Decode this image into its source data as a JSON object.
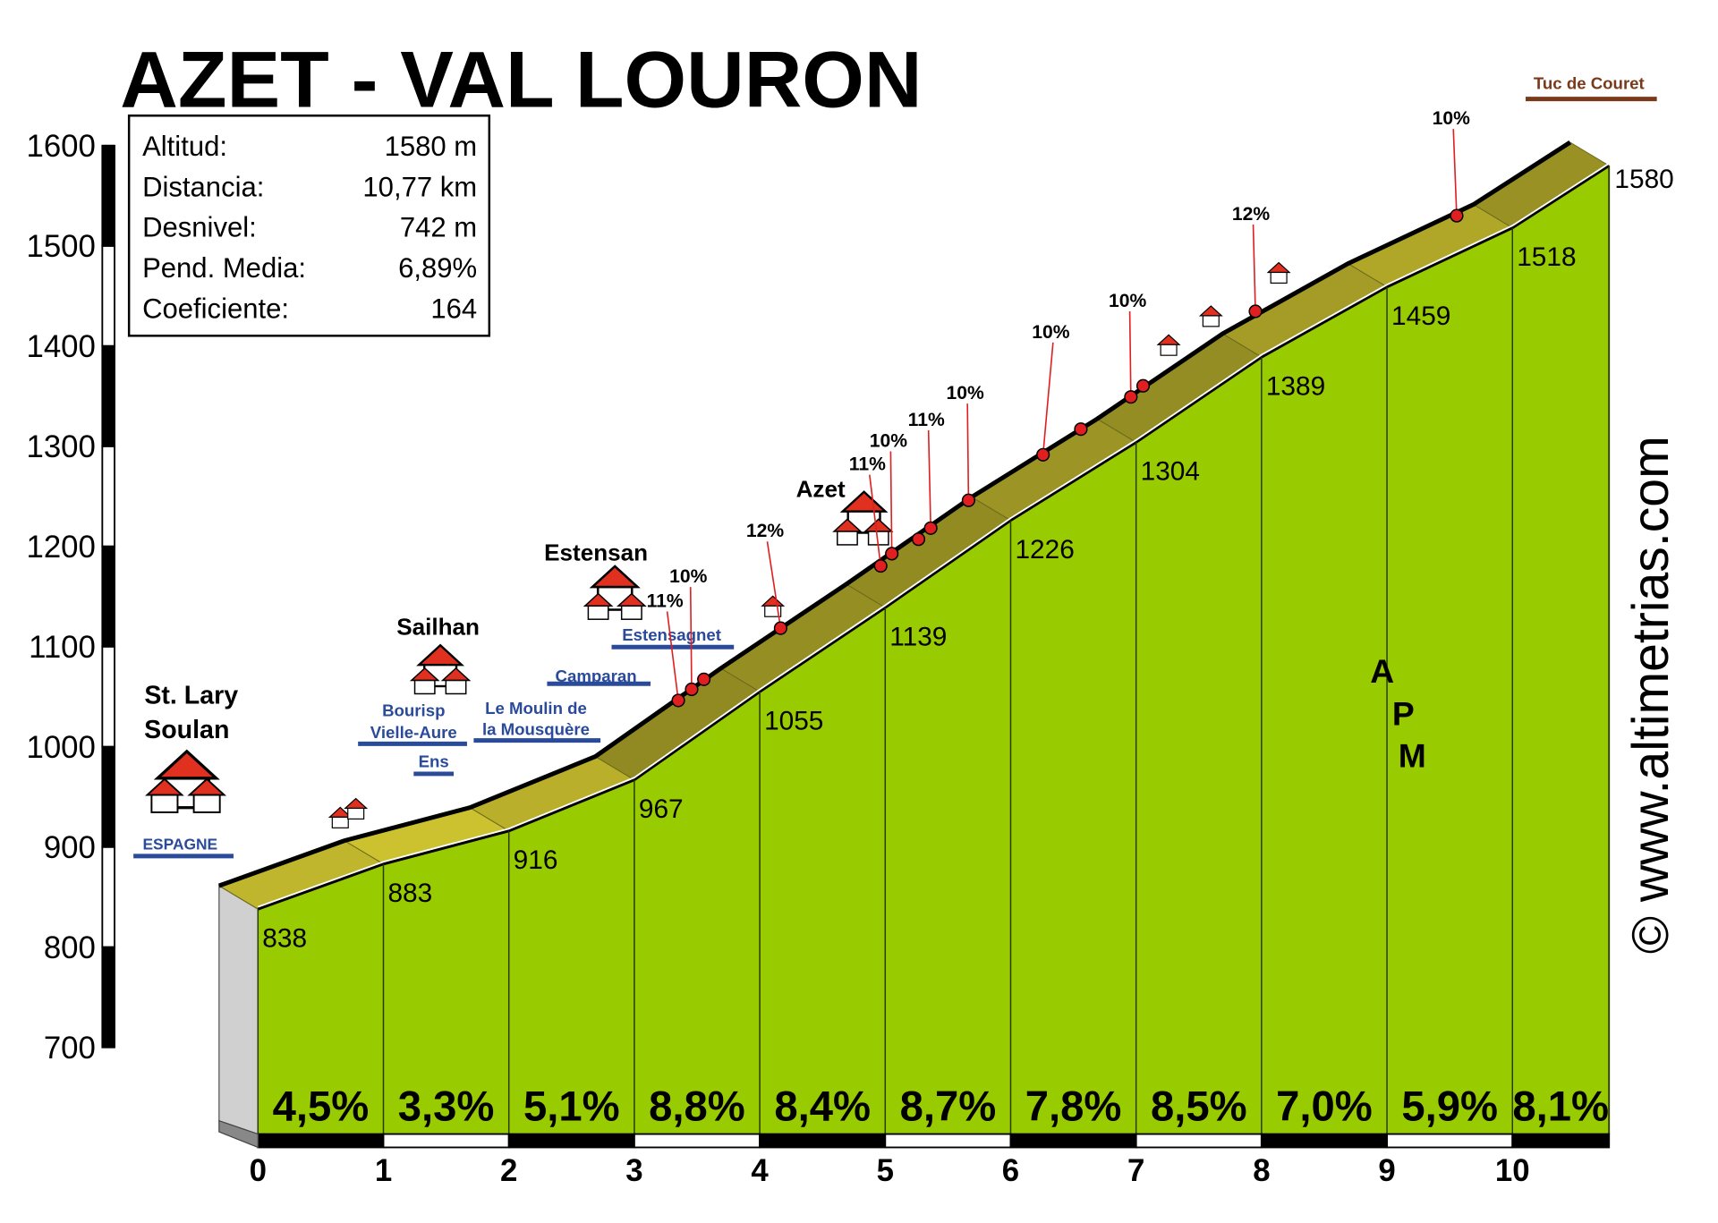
{
  "chart_data": {
    "type": "area",
    "title": "AZET - VAL LOURON",
    "x": [
      0,
      1,
      2,
      3,
      4,
      5,
      6,
      7,
      8,
      9,
      10,
      10.77
    ],
    "values": [
      838,
      883,
      916,
      967,
      1055,
      1139,
      1226,
      1304,
      1389,
      1459,
      1518,
      1580
    ],
    "color": "#99cc00",
    "xlim": [
      0,
      10.77
    ],
    "xticks": [
      0,
      1,
      2,
      3,
      4,
      5,
      6,
      7,
      8,
      9,
      10
    ],
    "ylim": [
      700,
      1600
    ],
    "yticks": [
      700,
      800,
      900,
      1000,
      1100,
      1200,
      1300,
      1400,
      1500,
      1600
    ],
    "grades": {
      "values": [
        4.5,
        3.3,
        5.1,
        8.8,
        8.4,
        8.7,
        7.8,
        8.5,
        7.0,
        5.9,
        8.1
      ],
      "value_labels": [
        "4,5%",
        "3,3%",
        "5,1%",
        "8,8%",
        "8,4%",
        "8,7%",
        "7,8%",
        "8,5%",
        "7,0%",
        "5,9%",
        "8,1%"
      ]
    },
    "stats": [
      {
        "label": "Altitud:",
        "value": "1580 m"
      },
      {
        "label": "Distancia:",
        "value": "10,77 km"
      },
      {
        "label": "Desnivel:",
        "value": "742 m"
      },
      {
        "label": "Pend. Media:",
        "value": "6,89%"
      },
      {
        "label": "Coeficiente:",
        "value": "164"
      }
    ],
    "places": [
      "St. Lary",
      "Soulan",
      "Sailhan",
      "Estensan",
      "Azet",
      "Tuc de Couret"
    ],
    "road_signs": [
      "ESPAGNE",
      "Bourisp",
      "Vielle-Aure",
      "Ens",
      "Le Moulin de",
      "la Mousquère",
      "Camparan",
      "Estensagnet"
    ],
    "gradient_notes": [
      "11%",
      "10%",
      "12%",
      "11%",
      "10%",
      "11%",
      "10%",
      "10%",
      "10%",
      "12%",
      "10%"
    ],
    "watermark": "© www.altimetrias.com",
    "logo": "APM"
  }
}
